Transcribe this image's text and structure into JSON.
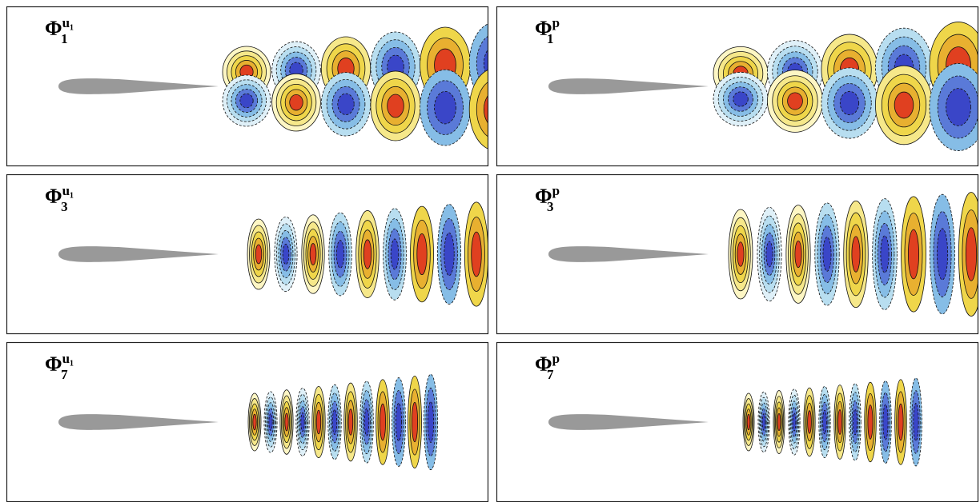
{
  "panels": [
    {
      "symbol": "Φ",
      "subscript": "1",
      "superscript": "u₁"
    },
    {
      "symbol": "Φ",
      "subscript": "1",
      "superscript": "p"
    },
    {
      "symbol": "Φ",
      "subscript": "3",
      "superscript": "u₁"
    },
    {
      "symbol": "Φ",
      "subscript": "3",
      "superscript": "p"
    },
    {
      "symbol": "Φ",
      "subscript": "7",
      "superscript": "u₁"
    },
    {
      "symbol": "Φ",
      "subscript": "7",
      "superscript": "p"
    }
  ]
}
